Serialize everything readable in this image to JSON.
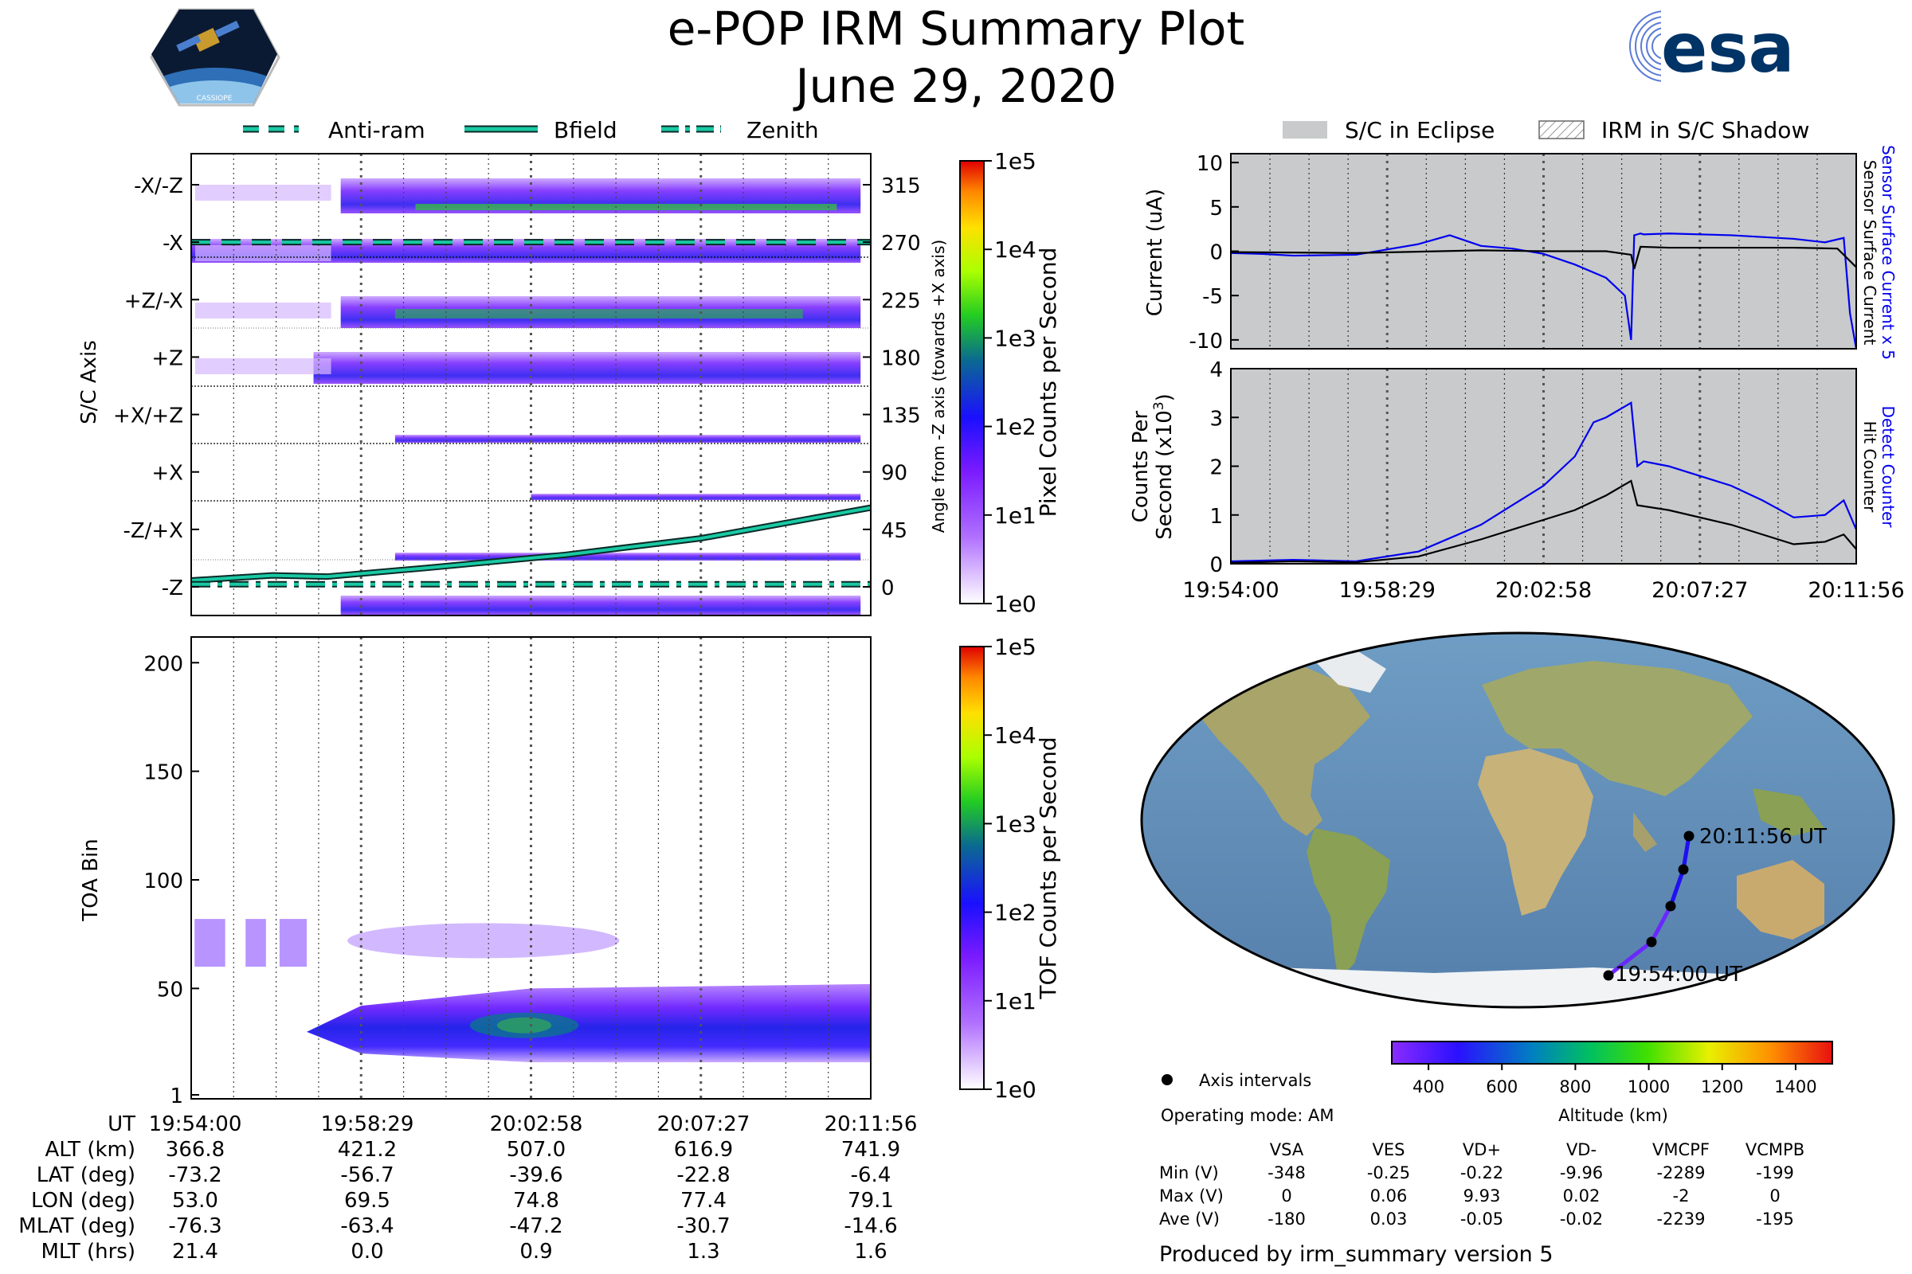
{
  "header": {
    "title": "e-POP IRM Summary Plot",
    "date": "June 29, 2020",
    "mission_badge": "CASSIOPE",
    "agency_logo": "esa"
  },
  "legend_top_left": {
    "anti_ram": "Anti-ram",
    "bfield": "Bfield",
    "zenith": "Zenith"
  },
  "legend_top_right": {
    "eclipse": "S/C in Eclipse",
    "shadow": "IRM in S/C Shadow"
  },
  "time_ticks": [
    "19:54:00",
    "19:58:29",
    "20:02:58",
    "20:07:27",
    "20:11:56"
  ],
  "colors": {
    "accent_teal": "#19c9a4",
    "sensor_blue": "#0000ee",
    "eclipse_gray": "#c8cacb",
    "esa_navy": "#003366"
  },
  "chart_data": [
    {
      "type": "heatmap",
      "name": "pixel-counts",
      "ylabel": "S/C Axis",
      "y_categories": [
        "-X/-Z",
        "-X",
        "+Z/-X",
        "+Z",
        "+X/+Z",
        "+X",
        "-Z/+X",
        "-Z"
      ],
      "right_axis_label": "Angle from -Z axis (towards +X axis)",
      "right_ticks": [
        315,
        270,
        225,
        180,
        135,
        90,
        45,
        0
      ],
      "colorbar_label": "Pixel Counts per Second",
      "colorbar_ticks": [
        "1e0",
        "1e1",
        "1e2",
        "1e3",
        "1e4",
        "1e5"
      ],
      "series": [
        {
          "name": "Bfield",
          "x": [
            0,
            0.12,
            0.2,
            0.35,
            0.55,
            0.75,
            1.0
          ],
          "values": [
            5,
            9,
            8,
            15,
            25,
            38,
            62
          ]
        },
        {
          "name": "Anti-ram",
          "values": [
            270,
            270
          ]
        },
        {
          "name": "Zenith",
          "values": [
            2,
            2
          ]
        }
      ]
    },
    {
      "type": "heatmap",
      "name": "tof-counts",
      "ylabel": "TOA Bin",
      "y_ticks": [
        1,
        50,
        100,
        150,
        200
      ],
      "ylim": [
        1,
        210
      ],
      "colorbar_label": "TOF Counts per Second",
      "colorbar_ticks": [
        "1e0",
        "1e1",
        "1e2",
        "1e3",
        "1e4",
        "1e5"
      ]
    },
    {
      "type": "line",
      "name": "current",
      "ylabel": "Current (uA)",
      "y_ticks": [
        10,
        5,
        0,
        -5,
        -10
      ],
      "ylim": [
        -11,
        11
      ],
      "right_label_blue": "Sensor Surface Current x 5",
      "right_label_black": "Sensor Surface Current",
      "series": [
        {
          "name": "Sensor Surface Current x 5",
          "x": [
            0,
            0.05,
            0.1,
            0.2,
            0.3,
            0.35,
            0.4,
            0.45,
            0.5,
            0.55,
            0.6,
            0.63,
            0.64,
            0.645,
            0.655,
            0.66,
            0.7,
            0.8,
            0.9,
            0.95,
            0.98,
            0.99,
            1.0
          ],
          "values": [
            -0.2,
            -0.3,
            -0.5,
            -0.4,
            0.8,
            1.8,
            0.6,
            0.3,
            -0.3,
            -1.5,
            -3.0,
            -5.0,
            -10.0,
            1.8,
            2.0,
            1.9,
            2.0,
            1.8,
            1.4,
            1.0,
            1.5,
            -7.0,
            -11.0
          ]
        },
        {
          "name": "Sensor Surface Current",
          "x": [
            0,
            0.2,
            0.4,
            0.5,
            0.6,
            0.64,
            0.645,
            0.655,
            0.7,
            0.9,
            0.97,
            1.0
          ],
          "values": [
            -0.1,
            -0.2,
            0.1,
            0.0,
            0.0,
            -0.4,
            -2.0,
            0.5,
            0.4,
            0.4,
            0.3,
            -1.8
          ]
        }
      ]
    },
    {
      "type": "line",
      "name": "counts",
      "ylabel": "Counts Per Second (x10^3)",
      "ylabel_line1": "Counts Per",
      "ylabel_line2": "Second (x10",
      "ylabel_exp": "3",
      "ylabel_close": ")",
      "y_ticks": [
        0,
        1,
        2,
        3,
        4
      ],
      "ylim": [
        0,
        4
      ],
      "right_label_blue": "Detect Counter",
      "right_label_black": "Hit Counter",
      "series": [
        {
          "name": "Detect Counter",
          "x": [
            0,
            0.1,
            0.2,
            0.3,
            0.4,
            0.5,
            0.55,
            0.58,
            0.6,
            0.64,
            0.65,
            0.66,
            0.7,
            0.8,
            0.85,
            0.9,
            0.95,
            0.98,
            1.0
          ],
          "values": [
            0.05,
            0.08,
            0.05,
            0.25,
            0.8,
            1.6,
            2.2,
            2.9,
            3.0,
            3.3,
            2.0,
            2.1,
            2.0,
            1.6,
            1.3,
            0.95,
            1.0,
            1.3,
            0.7
          ]
        },
        {
          "name": "Hit Counter",
          "x": [
            0,
            0.1,
            0.2,
            0.3,
            0.4,
            0.5,
            0.55,
            0.6,
            0.64,
            0.65,
            0.7,
            0.8,
            0.85,
            0.9,
            0.95,
            0.98,
            1.0
          ],
          "values": [
            0.02,
            0.05,
            0.03,
            0.15,
            0.5,
            0.9,
            1.1,
            1.4,
            1.7,
            1.2,
            1.1,
            0.8,
            0.6,
            0.4,
            0.45,
            0.6,
            0.3
          ]
        }
      ]
    },
    {
      "type": "table",
      "name": "ephemeris",
      "rows": [
        {
          "label": "UT",
          "values": [
            "19:54:00",
            "19:58:29",
            "20:02:58",
            "20:07:27",
            "20:11:56"
          ]
        },
        {
          "label": "ALT (km)",
          "values": [
            "366.8",
            "421.2",
            "507.0",
            "616.9",
            "741.9"
          ]
        },
        {
          "label": "LAT (deg)",
          "values": [
            "-73.2",
            "-56.7",
            "-39.6",
            "-22.8",
            "-6.4"
          ]
        },
        {
          "label": "LON (deg)",
          "values": [
            "53.0",
            "69.5",
            "74.8",
            "77.4",
            "79.1"
          ]
        },
        {
          "label": "MLAT (deg)",
          "values": [
            "-76.3",
            "-63.4",
            "-47.2",
            "-30.7",
            "-14.6"
          ]
        },
        {
          "label": "MLT (hrs)",
          "values": [
            "21.4",
            "0.0",
            "0.9",
            "1.3",
            "1.6"
          ]
        }
      ]
    },
    {
      "type": "scatter",
      "name": "orbit-map",
      "start_label": "19:54:00 UT",
      "end_label": "20:11:56 UT",
      "altitude_colorbar_label": "Altitude (km)",
      "altitude_ticks": [
        400,
        600,
        800,
        1000,
        1200,
        1400
      ],
      "altitude_range": [
        300,
        1500
      ],
      "lon": [
        53.0,
        69.5,
        74.8,
        77.4,
        79.1
      ],
      "lat": [
        -73.2,
        -56.7,
        -39.6,
        -22.8,
        -6.4
      ]
    },
    {
      "type": "table",
      "name": "voltages",
      "columns": [
        "VSA",
        "VES",
        "VD+",
        "VD-",
        "VMCPF",
        "VCMPB"
      ],
      "rows": [
        {
          "label": "Min (V)",
          "values": [
            "-348",
            "-0.25",
            "-0.22",
            "-9.96",
            "-2289",
            "-199"
          ]
        },
        {
          "label": "Max (V)",
          "values": [
            "0",
            "0.06",
            "9.93",
            "0.02",
            "-2",
            "0"
          ]
        },
        {
          "label": "Ave (V)",
          "values": [
            "-180",
            "0.03",
            "-0.05",
            "-0.02",
            "-2239",
            "-195"
          ]
        }
      ]
    }
  ],
  "map_legend": {
    "axis_intervals": "Axis intervals",
    "operating_mode": "Operating mode: AM"
  },
  "footer": {
    "produced_by": "Produced by irm_summary version 5"
  }
}
